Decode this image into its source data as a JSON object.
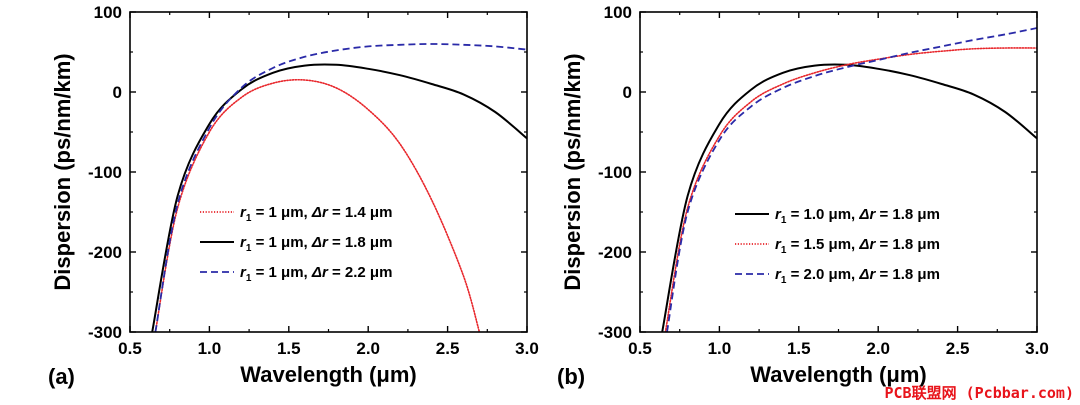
{
  "chart_data": [
    {
      "type": "line",
      "panel_label": "(a)",
      "xlabel": "Wavelength (μm)",
      "ylabel": "Dispersion (ps/nm/km)",
      "xlim": [
        0.5,
        3.0
      ],
      "ylim": [
        -300,
        100
      ],
      "xticks": [
        "0.5",
        "1.0",
        "1.5",
        "2.0",
        "2.5",
        "3.0"
      ],
      "yticks": [
        "100",
        "0",
        "-100",
        "-200",
        "-300"
      ],
      "legend_position": "lower-left",
      "series": [
        {
          "name": "r1 = 1 μm, Δr = 1.4 μm",
          "legend": {
            "r": "r",
            "sub": "1",
            "mid": " = 1 μm, ",
            "dr": "Δr",
            "tail": " = 1.4 μm"
          },
          "color": "#e8262b",
          "style": "dotted",
          "x": [
            0.66,
            0.8,
            1.0,
            1.2,
            1.4,
            1.6,
            1.8,
            2.0,
            2.2,
            2.4,
            2.6,
            2.7
          ],
          "y": [
            -300,
            -145,
            -50,
            -7,
            11,
            15,
            5,
            -22,
            -65,
            -135,
            -230,
            -300
          ]
        },
        {
          "name": "r1 = 1 μm, Δr = 1.8 μm",
          "legend": {
            "r": "r",
            "sub": "1",
            "mid": " = 1 μm, ",
            "dr": "Δr",
            "tail": " = 1.8 μm"
          },
          "color": "#000000",
          "style": "solid",
          "x": [
            0.64,
            0.8,
            1.0,
            1.2,
            1.4,
            1.6,
            1.8,
            2.0,
            2.2,
            2.4,
            2.6,
            2.8,
            3.0
          ],
          "y": [
            -300,
            -130,
            -40,
            3,
            24,
            33,
            34,
            29,
            21,
            10,
            -3,
            -25,
            -58
          ]
        },
        {
          "name": "r1 = 1 μm, Δr = 2.2 μm",
          "legend": {
            "r": "r",
            "sub": "1",
            "mid": " = 1 μm, ",
            "dr": "Δr",
            "tail": " = 2.2 μm"
          },
          "color": "#2a2aa8",
          "style": "dashed",
          "x": [
            0.66,
            0.8,
            1.0,
            1.2,
            1.4,
            1.6,
            1.8,
            2.0,
            2.2,
            2.4,
            2.6,
            2.8,
            3.0
          ],
          "y": [
            -300,
            -140,
            -45,
            5,
            30,
            44,
            52,
            57,
            59,
            60,
            59,
            57,
            53
          ]
        }
      ]
    },
    {
      "type": "line",
      "panel_label": "(b)",
      "xlabel": "Wavelength (μm)",
      "ylabel": "Dispersion (ps/nm/km)",
      "xlim": [
        0.5,
        3.0
      ],
      "ylim": [
        -300,
        100
      ],
      "xticks": [
        "0.5",
        "1.0",
        "1.5",
        "2.0",
        "2.5",
        "3.0"
      ],
      "yticks": [
        "100",
        "0",
        "-100",
        "-200",
        "-300"
      ],
      "legend_position": "lower-right",
      "series": [
        {
          "name": "r1 = 1.0 μm, Δr = 1.8 μm",
          "legend": {
            "r": "r",
            "sub": "1",
            "mid": " = 1.0 μm, ",
            "dr": "Δr",
            "tail": " = 1.8 μm"
          },
          "color": "#000000",
          "style": "solid",
          "x": [
            0.64,
            0.8,
            1.0,
            1.2,
            1.4,
            1.6,
            1.8,
            2.0,
            2.2,
            2.4,
            2.6,
            2.8,
            3.0
          ],
          "y": [
            -300,
            -130,
            -40,
            3,
            24,
            33,
            34,
            29,
            21,
            10,
            -3,
            -25,
            -58
          ]
        },
        {
          "name": "r1 = 1.5 μm, Δr = 1.8 μm",
          "legend": {
            "r": "r",
            "sub": "1",
            "mid": " = 1.5 μm, ",
            "dr": "Δr",
            "tail": " = 1.8 μm"
          },
          "color": "#e8262b",
          "style": "dotted",
          "x": [
            0.66,
            0.8,
            1.0,
            1.2,
            1.4,
            1.6,
            1.8,
            2.0,
            2.2,
            2.4,
            2.6,
            2.8,
            3.0
          ],
          "y": [
            -300,
            -145,
            -55,
            -12,
            10,
            24,
            34,
            41,
            47,
            51,
            54,
            55,
            55
          ]
        },
        {
          "name": "r1 = 2.0 μm, Δr = 1.8 μm",
          "legend": {
            "r": "r",
            "sub": "1",
            "mid": " = 2.0 μm, ",
            "dr": "Δr",
            "tail": " = 1.8 μm"
          },
          "color": "#2a2aa8",
          "style": "dashed",
          "x": [
            0.67,
            0.8,
            1.0,
            1.2,
            1.4,
            1.6,
            1.8,
            2.0,
            2.2,
            2.4,
            2.6,
            2.8,
            3.0
          ],
          "y": [
            -300,
            -150,
            -60,
            -18,
            5,
            20,
            31,
            40,
            49,
            57,
            65,
            72,
            80
          ]
        }
      ]
    }
  ],
  "watermark": "PCB联盟网 (Pcbbar.com)"
}
